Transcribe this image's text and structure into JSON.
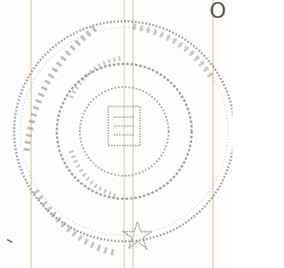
{
  "header": {
    "text": "O"
  }
}
